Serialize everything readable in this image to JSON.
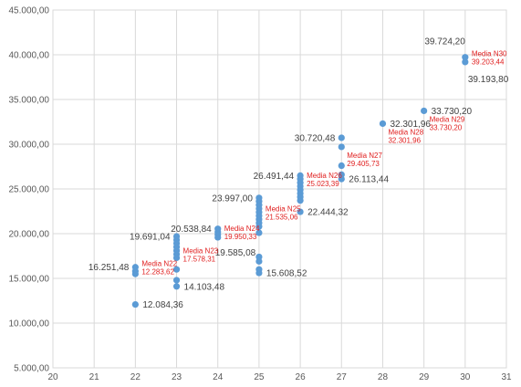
{
  "chart_data": {
    "type": "scatter",
    "title": "",
    "xlabel": "",
    "ylabel": "",
    "xlim": [
      20,
      31
    ],
    "ylim": [
      5000,
      45000
    ],
    "grid": true,
    "x_ticks": [
      "20",
      "21",
      "22",
      "23",
      "24",
      "25",
      "26",
      "27",
      "28",
      "29",
      "30",
      "31"
    ],
    "y_ticks": [
      "5.000,00",
      "10.000,00",
      "15.000,00",
      "20.000,00",
      "25.000,00",
      "30.000,00",
      "35.000,00",
      "40.000,00",
      "45.000,00"
    ],
    "series": [
      {
        "color": "#5b9bd5",
        "points": [
          [
            22,
            16251.48
          ],
          [
            22,
            15800
          ],
          [
            22,
            15500
          ],
          [
            22,
            12084.36
          ],
          [
            23,
            19691.04
          ],
          [
            23,
            19300
          ],
          [
            23,
            18900
          ],
          [
            23,
            18500
          ],
          [
            23,
            18100
          ],
          [
            23,
            17700
          ],
          [
            23,
            17300
          ],
          [
            23,
            16000
          ],
          [
            23,
            14800
          ],
          [
            23,
            14103.48
          ],
          [
            24,
            20538.84
          ],
          [
            24,
            20200
          ],
          [
            24,
            19900
          ],
          [
            24,
            19585.08
          ],
          [
            25,
            23997.0
          ],
          [
            25,
            23600
          ],
          [
            25,
            23200
          ],
          [
            25,
            22800
          ],
          [
            25,
            22400
          ],
          [
            25,
            22000
          ],
          [
            25,
            21600
          ],
          [
            25,
            21200
          ],
          [
            25,
            20800
          ],
          [
            25,
            20100
          ],
          [
            25,
            17400
          ],
          [
            25,
            16900
          ],
          [
            25,
            16000
          ],
          [
            25,
            15608.52
          ],
          [
            26,
            26491.44
          ],
          [
            26,
            26100
          ],
          [
            26,
            25700
          ],
          [
            26,
            25300
          ],
          [
            26,
            24900
          ],
          [
            26,
            24500
          ],
          [
            26,
            24100
          ],
          [
            26,
            23700
          ],
          [
            26,
            22444.32
          ],
          [
            27,
            30720.48
          ],
          [
            27,
            29700
          ],
          [
            27,
            27600
          ],
          [
            27,
            26600
          ],
          [
            27,
            26113.44
          ],
          [
            28,
            32301.96
          ],
          [
            29,
            33730.2
          ],
          [
            30,
            39724.2
          ],
          [
            30,
            39193.8
          ]
        ]
      }
    ],
    "value_labels": [
      {
        "text": "16.251,48",
        "x": 22,
        "y": 16251.48,
        "side": "left"
      },
      {
        "text": "12.084,36",
        "x": 22,
        "y": 12084.36,
        "side": "right"
      },
      {
        "text": "19.691,04",
        "x": 23,
        "y": 19691.04,
        "side": "left"
      },
      {
        "text": "14.103,48",
        "x": 23,
        "y": 14103.48,
        "side": "right"
      },
      {
        "text": "20.538,84",
        "x": 24,
        "y": 20538.84,
        "side": "left"
      },
      {
        "text": "19.585,08",
        "x": 24,
        "y": 19585.08,
        "side": "below-right"
      },
      {
        "text": "23.997,00",
        "x": 25,
        "y": 23997.0,
        "side": "left"
      },
      {
        "text": "15.608,52",
        "x": 25,
        "y": 15608.52,
        "side": "right"
      },
      {
        "text": "26.491,44",
        "x": 26,
        "y": 26491.44,
        "side": "left"
      },
      {
        "text": "22.444,32",
        "x": 26,
        "y": 22444.32,
        "side": "right"
      },
      {
        "text": "30.720,48",
        "x": 27,
        "y": 30720.48,
        "side": "left"
      },
      {
        "text": "26.113,44",
        "x": 27,
        "y": 26113.44,
        "side": "right"
      },
      {
        "text": "32.301,96",
        "x": 28,
        "y": 32301.96,
        "side": "right"
      },
      {
        "text": "33.730,20",
        "x": 29,
        "y": 33730.2,
        "side": "right"
      },
      {
        "text": "39.724,20",
        "x": 30,
        "y": 39724.2,
        "side": "above-left"
      },
      {
        "text": "39.193,80",
        "x": 30,
        "y": 39193.8,
        "side": "below"
      }
    ],
    "mean_labels": [
      {
        "name": "Media N22",
        "value": "12.283,62",
        "x": 22,
        "y": 16251.48,
        "pos": "right"
      },
      {
        "name": "Media N23",
        "value": "17.578,31",
        "x": 23,
        "y": 17700,
        "pos": "right"
      },
      {
        "name": "Media N24",
        "value": "19.950,33",
        "x": 24,
        "y": 20200,
        "pos": "right"
      },
      {
        "name": "Media N25",
        "value": "21.535,06",
        "x": 25,
        "y": 22400,
        "pos": "right"
      },
      {
        "name": "Media N26",
        "value": "25.023,39",
        "x": 26,
        "y": 26100,
        "pos": "right"
      },
      {
        "name": "Media N27",
        "value": "29.405,73",
        "x": 27,
        "y": 29700,
        "pos": "below-right"
      },
      {
        "name": "Media N28",
        "value": "32.301,96",
        "x": 28,
        "y": 32301.96,
        "pos": "below-right"
      },
      {
        "name": "Media N29",
        "value": "33.730,20",
        "x": 29,
        "y": 33730.2,
        "pos": "below-right"
      },
      {
        "name": "Media N30",
        "value": "39.203,44",
        "x": 30,
        "y": 39724.2,
        "pos": "right"
      }
    ]
  }
}
